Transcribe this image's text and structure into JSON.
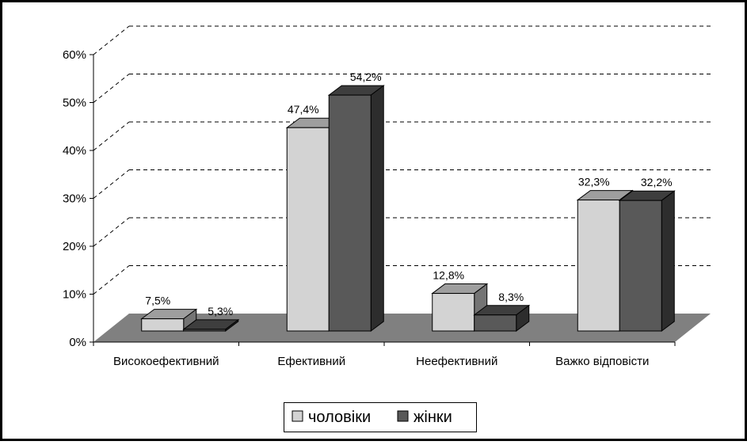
{
  "chart_data": {
    "type": "bar",
    "title": "",
    "xlabel": "",
    "ylabel": "",
    "categories": [
      "Високоефективний",
      "Ефективний",
      "Неефективний",
      "Важко відповісти"
    ],
    "series": [
      {
        "name": "чоловіки",
        "values": [
          7.5,
          47.4,
          12.8,
          32.3
        ],
        "labels": [
          "7,5%",
          "47,4%",
          "12,8%",
          "32,3%"
        ],
        "color": "#d3d3d3"
      },
      {
        "name": "жінки",
        "values": [
          5.3,
          54.2,
          8.3,
          32.2
        ],
        "labels": [
          "5,3%",
          "54,2%",
          "8,3%",
          "32,2%"
        ],
        "color": "#595959"
      }
    ],
    "ylim": [
      0,
      60
    ],
    "yticks": [
      "0%",
      "10%",
      "20%",
      "30%",
      "40%",
      "50%",
      "60%"
    ],
    "grid": true,
    "legend_position": "bottom",
    "floor_color": "#808080",
    "three_d": true
  }
}
